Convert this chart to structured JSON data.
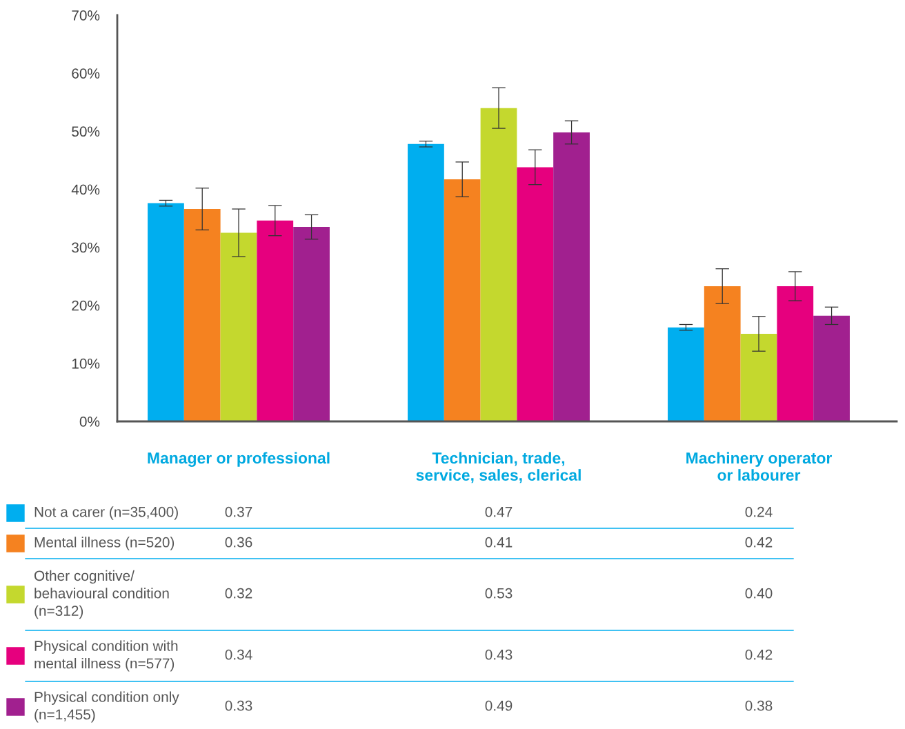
{
  "chart_data": {
    "type": "bar",
    "categories": [
      "Manager or professional",
      "Technician, trade,\nservice, sales, clerical",
      "Machinery operator\nor labourer"
    ],
    "series": [
      {
        "name": "Not a carer (n=35,400)",
        "color": "#00aeef",
        "values": [
          37.6,
          47.8,
          16.2
        ],
        "errors": [
          0.5,
          0.5,
          0.5
        ]
      },
      {
        "name": "Mental illness (n=520)",
        "color": "#f58220",
        "values": [
          36.6,
          41.7,
          23.3
        ],
        "errors": [
          3.6,
          3.0,
          3.0
        ]
      },
      {
        "name": "Other cognitive/\nbehavioural condition\n(n=312)",
        "color": "#c4d82e",
        "values": [
          32.5,
          54.0,
          15.1
        ],
        "errors": [
          4.1,
          3.5,
          3.0
        ]
      },
      {
        "name": "Physical condition with\nmental illness (n=577)",
        "color": "#e6007e",
        "values": [
          34.6,
          43.8,
          23.3
        ],
        "errors": [
          2.6,
          3.0,
          2.5
        ]
      },
      {
        "name": "Physical condition only\n(n=1,455)",
        "color": "#a1208f",
        "values": [
          33.5,
          49.8,
          18.2
        ],
        "errors": [
          2.1,
          2.0,
          1.5
        ]
      }
    ],
    "annotations": [
      "0.37",
      "0.47",
      "0.24",
      "0.36",
      "0.41",
      "0.42",
      "0.32",
      "0.53",
      "0.40",
      "0.34",
      "0.43",
      "0.42",
      "0.33",
      "0.49",
      "0.38"
    ],
    "ylim": [
      0,
      70
    ],
    "yticks": [
      {
        "value": 0,
        "label": "0%"
      },
      {
        "value": 10,
        "label": "10%"
      },
      {
        "value": 20,
        "label": "20%"
      },
      {
        "value": 30,
        "label": "30%"
      },
      {
        "value": 40,
        "label": "40%"
      },
      {
        "value": 50,
        "label": "50%"
      },
      {
        "value": 60,
        "label": "60%"
      },
      {
        "value": 70,
        "label": "70%"
      }
    ],
    "grid": false,
    "legend": "bottom"
  }
}
